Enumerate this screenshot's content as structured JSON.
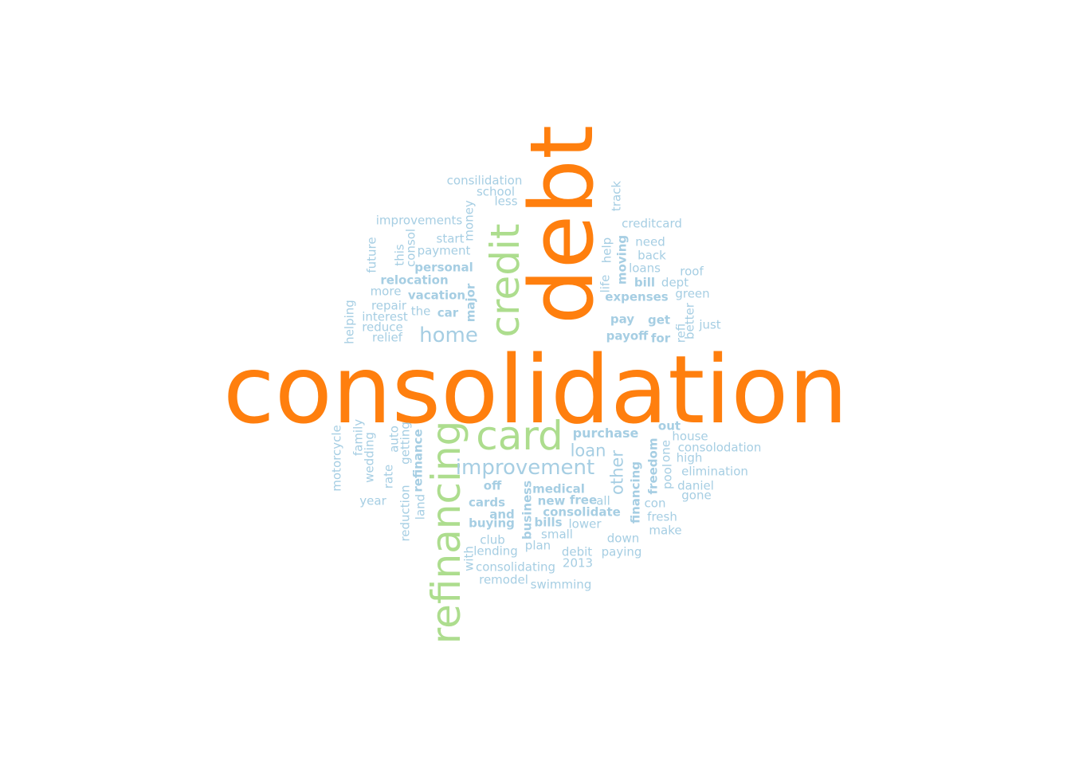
{
  "palette": {
    "primary": "#ff7f0e",
    "secondary": "#addd8e",
    "tertiary": "#a6cee3"
  },
  "words": [
    {
      "text": "consolidation",
      "tier": "primary"
    },
    {
      "text": "debt",
      "tier": "primary"
    },
    {
      "text": "credit",
      "tier": "secondary"
    },
    {
      "text": "card",
      "tier": "secondary"
    },
    {
      "text": "refinancing",
      "tier": "secondary"
    },
    {
      "text": "home",
      "tier": "tertiary"
    },
    {
      "text": "improvement",
      "tier": "tertiary"
    },
    {
      "text": "loan",
      "tier": "tertiary"
    },
    {
      "text": "other",
      "tier": "tertiary"
    },
    {
      "text": "purchase",
      "tier": "tertiary"
    },
    {
      "text": "consilidation",
      "tier": "tertiary"
    },
    {
      "text": "school",
      "tier": "tertiary"
    },
    {
      "text": "less",
      "tier": "tertiary"
    },
    {
      "text": "improvements",
      "tier": "tertiary"
    },
    {
      "text": "money",
      "tier": "tertiary"
    },
    {
      "text": "consol",
      "tier": "tertiary"
    },
    {
      "text": "start",
      "tier": "tertiary"
    },
    {
      "text": "payment",
      "tier": "tertiary"
    },
    {
      "text": "this",
      "tier": "tertiary"
    },
    {
      "text": "future",
      "tier": "tertiary"
    },
    {
      "text": "personal",
      "tier": "tertiary"
    },
    {
      "text": "relocation",
      "tier": "tertiary"
    },
    {
      "text": "more",
      "tier": "tertiary"
    },
    {
      "text": "vacation",
      "tier": "tertiary"
    },
    {
      "text": "major",
      "tier": "tertiary"
    },
    {
      "text": "repair",
      "tier": "tertiary"
    },
    {
      "text": "the",
      "tier": "tertiary"
    },
    {
      "text": "car",
      "tier": "tertiary"
    },
    {
      "text": "interest",
      "tier": "tertiary"
    },
    {
      "text": "reduce",
      "tier": "tertiary"
    },
    {
      "text": "relief",
      "tier": "tertiary"
    },
    {
      "text": "helping",
      "tier": "tertiary"
    },
    {
      "text": "track",
      "tier": "tertiary"
    },
    {
      "text": "creditcard",
      "tier": "tertiary"
    },
    {
      "text": "need",
      "tier": "tertiary"
    },
    {
      "text": "back",
      "tier": "tertiary"
    },
    {
      "text": "help",
      "tier": "tertiary"
    },
    {
      "text": "moving",
      "tier": "tertiary"
    },
    {
      "text": "loans",
      "tier": "tertiary"
    },
    {
      "text": "roof",
      "tier": "tertiary"
    },
    {
      "text": "life",
      "tier": "tertiary"
    },
    {
      "text": "bill",
      "tier": "tertiary"
    },
    {
      "text": "dept",
      "tier": "tertiary"
    },
    {
      "text": "expenses",
      "tier": "tertiary"
    },
    {
      "text": "green",
      "tier": "tertiary"
    },
    {
      "text": "better",
      "tier": "tertiary"
    },
    {
      "text": "pay",
      "tier": "tertiary"
    },
    {
      "text": "get",
      "tier": "tertiary"
    },
    {
      "text": "just",
      "tier": "tertiary"
    },
    {
      "text": "refi",
      "tier": "tertiary"
    },
    {
      "text": "payoff",
      "tier": "tertiary"
    },
    {
      "text": "for",
      "tier": "tertiary"
    },
    {
      "text": "out",
      "tier": "tertiary"
    },
    {
      "text": "house",
      "tier": "tertiary"
    },
    {
      "text": "consolodation",
      "tier": "tertiary"
    },
    {
      "text": "one",
      "tier": "tertiary"
    },
    {
      "text": "high",
      "tier": "tertiary"
    },
    {
      "text": "freedom",
      "tier": "tertiary"
    },
    {
      "text": "elimination",
      "tier": "tertiary"
    },
    {
      "text": "pool",
      "tier": "tertiary"
    },
    {
      "text": "daniel",
      "tier": "tertiary"
    },
    {
      "text": "gone",
      "tier": "tertiary"
    },
    {
      "text": "financing",
      "tier": "tertiary"
    },
    {
      "text": "con",
      "tier": "tertiary"
    },
    {
      "text": "fresh",
      "tier": "tertiary"
    },
    {
      "text": "make",
      "tier": "tertiary"
    },
    {
      "text": "motorcycle",
      "tier": "tertiary"
    },
    {
      "text": "family",
      "tier": "tertiary"
    },
    {
      "text": "wedding",
      "tier": "tertiary"
    },
    {
      "text": "auto",
      "tier": "tertiary"
    },
    {
      "text": "getting",
      "tier": "tertiary"
    },
    {
      "text": "refinance",
      "tier": "tertiary"
    },
    {
      "text": "rate",
      "tier": "tertiary"
    },
    {
      "text": "year",
      "tier": "tertiary"
    },
    {
      "text": "reduction",
      "tier": "tertiary"
    },
    {
      "text": "land",
      "tier": "tertiary"
    },
    {
      "text": "off",
      "tier": "tertiary"
    },
    {
      "text": "medical",
      "tier": "tertiary"
    },
    {
      "text": "business",
      "tier": "tertiary"
    },
    {
      "text": "new",
      "tier": "tertiary"
    },
    {
      "text": "free",
      "tier": "tertiary"
    },
    {
      "text": "all",
      "tier": "tertiary"
    },
    {
      "text": "cards",
      "tier": "tertiary"
    },
    {
      "text": "consolidate",
      "tier": "tertiary"
    },
    {
      "text": "and",
      "tier": "tertiary"
    },
    {
      "text": "buying",
      "tier": "tertiary"
    },
    {
      "text": "bills",
      "tier": "tertiary"
    },
    {
      "text": "lower",
      "tier": "tertiary"
    },
    {
      "text": "small",
      "tier": "tertiary"
    },
    {
      "text": "club",
      "tier": "tertiary"
    },
    {
      "text": "down",
      "tier": "tertiary"
    },
    {
      "text": "plan",
      "tier": "tertiary"
    },
    {
      "text": "lending",
      "tier": "tertiary"
    },
    {
      "text": "debit",
      "tier": "tertiary"
    },
    {
      "text": "paying",
      "tier": "tertiary"
    },
    {
      "text": "with",
      "tier": "tertiary"
    },
    {
      "text": "2013",
      "tier": "tertiary"
    },
    {
      "text": "consolidating",
      "tier": "tertiary"
    },
    {
      "text": "remodel",
      "tier": "tertiary"
    },
    {
      "text": "swimming",
      "tier": "tertiary"
    }
  ]
}
